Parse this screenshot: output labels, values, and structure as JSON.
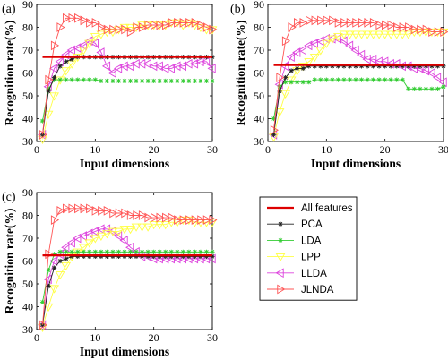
{
  "chart_data": [
    {
      "type": "line",
      "panel_label": "(a)",
      "xlabel": "Input dimensions",
      "ylabel": "Recognition rate(%)",
      "xlim": [
        0,
        30
      ],
      "ylim": [
        30,
        90
      ],
      "xticks": [
        "0",
        "10",
        "20",
        "30"
      ],
      "yticks": [
        "30",
        "40",
        "50",
        "60",
        "70",
        "80",
        "90"
      ],
      "x": [
        1,
        2,
        3,
        4,
        5,
        6,
        7,
        8,
        9,
        10,
        11,
        12,
        13,
        14,
        15,
        16,
        17,
        18,
        19,
        20,
        21,
        22,
        23,
        24,
        25,
        26,
        27,
        28,
        29,
        30
      ],
      "series": [
        {
          "name": "All features",
          "values": [
            67,
            67,
            67,
            67,
            67,
            67,
            67,
            67,
            67,
            67,
            67,
            67,
            67,
            67,
            67,
            67,
            67,
            67,
            67,
            67,
            67,
            67,
            67,
            67,
            67,
            67,
            67,
            67,
            67,
            67
          ]
        },
        {
          "name": "PCA",
          "values": [
            33,
            52,
            58,
            63,
            65,
            66,
            67,
            67,
            67,
            67,
            67,
            67,
            67,
            67,
            67,
            67,
            67,
            67,
            67,
            67,
            67,
            67,
            67,
            67,
            67,
            67,
            67,
            67,
            67,
            67
          ]
        },
        {
          "name": "LDA",
          "values": [
            39,
            53,
            57,
            57,
            57,
            57,
            57,
            57,
            57,
            57,
            56.5,
            56.5,
            56.5,
            56.5,
            56.5,
            56.5,
            56.5,
            56.5,
            56.5,
            56.5,
            56.5,
            56.5,
            56.5,
            56.5,
            56.5,
            56.5,
            56.5,
            56.5,
            56.5,
            56.5
          ]
        },
        {
          "name": "LPP",
          "values": [
            31,
            42,
            50,
            57,
            61,
            64,
            67,
            70,
            73,
            76,
            77,
            78,
            78,
            79,
            80,
            80,
            80,
            81,
            81,
            81,
            81,
            81,
            82,
            82,
            81,
            82,
            81,
            80,
            79,
            79
          ]
        },
        {
          "name": "LLDA",
          "values": [
            33,
            54,
            62,
            65,
            68,
            70,
            71,
            72,
            74,
            73,
            69,
            63,
            60,
            62,
            63,
            63,
            64,
            64,
            64,
            63,
            63,
            62,
            62,
            63,
            63,
            64,
            64,
            65,
            65,
            62
          ]
        },
        {
          "name": "JLNDA",
          "values": [
            33,
            57,
            72,
            80,
            84,
            84,
            84,
            83,
            82,
            82,
            80,
            79,
            79,
            79,
            79,
            78,
            80,
            80,
            81,
            81,
            81,
            81,
            82,
            82,
            82,
            82,
            82,
            81,
            80,
            79
          ]
        }
      ]
    },
    {
      "type": "line",
      "panel_label": "(b)",
      "xlabel": "Input dimensions",
      "ylabel": "Recognition rate(%)",
      "xlim": [
        0,
        30
      ],
      "ylim": [
        30,
        90
      ],
      "xticks": [
        "0",
        "10",
        "20",
        "30"
      ],
      "yticks": [
        "30",
        "40",
        "50",
        "60",
        "70",
        "80",
        "90"
      ],
      "x": [
        1,
        2,
        3,
        4,
        5,
        6,
        7,
        8,
        9,
        10,
        11,
        12,
        13,
        14,
        15,
        16,
        17,
        18,
        19,
        20,
        21,
        22,
        23,
        24,
        25,
        26,
        27,
        28,
        29,
        30
      ],
      "series": [
        {
          "name": "All features",
          "values": [
            63.5,
            63.5,
            63.5,
            63.5,
            63.5,
            63.5,
            63.5,
            63.5,
            63.5,
            63.5,
            63.5,
            63.5,
            63.5,
            63.5,
            63.5,
            63.5,
            63.5,
            63.5,
            63.5,
            63.5,
            63.5,
            63.5,
            63.5,
            63.5,
            63.5,
            63.5,
            63.5,
            63.5,
            63.5,
            63.5
          ]
        },
        {
          "name": "PCA",
          "values": [
            33,
            52,
            58,
            61,
            62,
            62,
            63,
            63,
            63,
            63,
            63,
            63,
            63,
            63,
            63,
            63,
            63,
            63,
            63,
            63,
            63,
            63,
            63,
            63,
            63,
            63,
            63,
            63,
            63,
            63
          ]
        },
        {
          "name": "LDA",
          "values": [
            40,
            54,
            56,
            56,
            56,
            56,
            56,
            57,
            57,
            57,
            57,
            57,
            57,
            57,
            57,
            57,
            57,
            57,
            57,
            57,
            57,
            57,
            57,
            53,
            53,
            53,
            53,
            53,
            53,
            54
          ]
        },
        {
          "name": "LPP",
          "values": [
            32,
            43,
            51,
            57,
            61,
            63,
            65,
            67,
            70,
            73,
            75,
            76,
            77,
            77,
            77,
            77,
            77,
            77,
            77,
            77,
            77,
            77,
            77,
            77,
            78,
            78,
            78,
            78,
            78,
            78
          ]
        },
        {
          "name": "LLDA",
          "values": [
            33,
            55,
            63,
            67,
            69,
            70,
            72,
            73,
            74,
            75,
            75,
            75,
            74,
            72,
            70,
            68,
            66,
            66,
            65,
            65,
            64,
            64,
            63,
            63,
            62,
            62,
            61,
            60,
            58,
            56
          ]
        },
        {
          "name": "JLNDA",
          "values": [
            35,
            58,
            74,
            80,
            82,
            82,
            83,
            83,
            83,
            83,
            83,
            82,
            82,
            82,
            82,
            82,
            82,
            82,
            81,
            81,
            81,
            80,
            80,
            80,
            79,
            79,
            79,
            78,
            78,
            78
          ]
        }
      ]
    },
    {
      "type": "line",
      "panel_label": "(c)",
      "xlabel": "Input dimensions",
      "ylabel": "Recognition rate(%)",
      "xlim": [
        0,
        30
      ],
      "ylim": [
        30,
        90
      ],
      "xticks": [
        "0",
        "10",
        "20",
        "30"
      ],
      "yticks": [
        "30",
        "40",
        "50",
        "60",
        "70",
        "80",
        "90"
      ],
      "x": [
        1,
        2,
        3,
        4,
        5,
        6,
        7,
        8,
        9,
        10,
        11,
        12,
        13,
        14,
        15,
        16,
        17,
        18,
        19,
        20,
        21,
        22,
        23,
        24,
        25,
        26,
        27,
        28,
        29,
        30
      ],
      "series": [
        {
          "name": "All features",
          "values": [
            62.5,
            62.5,
            62.5,
            62.5,
            62.5,
            62.5,
            62.5,
            62.5,
            62.5,
            62.5,
            62.5,
            62.5,
            62.5,
            62.5,
            62.5,
            62.5,
            62.5,
            62.5,
            62.5,
            62.5,
            62.5,
            62.5,
            62.5,
            62.5,
            62.5,
            62.5,
            62.5,
            62.5,
            62.5,
            62.5
          ]
        },
        {
          "name": "PCA",
          "values": [
            32,
            49,
            57,
            60,
            61,
            62,
            62,
            62,
            62,
            62,
            62,
            62,
            62,
            62,
            62,
            62,
            62,
            62,
            62,
            62,
            62,
            62,
            62,
            62,
            62,
            62,
            62,
            62,
            62,
            62
          ]
        },
        {
          "name": "LDA",
          "values": [
            42,
            56,
            63,
            64,
            64,
            64,
            64,
            64,
            64,
            64,
            64,
            64,
            64,
            64,
            64,
            64,
            64,
            64,
            64,
            64,
            64,
            64,
            64,
            64,
            64,
            64,
            64,
            64,
            64,
            64
          ]
        },
        {
          "name": "LPP",
          "values": [
            31,
            40,
            48,
            54,
            58,
            62,
            64,
            66,
            68,
            70,
            71,
            72,
            73,
            73,
            74,
            74,
            75,
            75,
            75,
            76,
            76,
            76,
            77,
            77,
            78,
            78,
            77,
            77,
            77,
            77
          ]
        },
        {
          "name": "LLDA",
          "values": [
            32,
            52,
            60,
            63,
            66,
            68,
            70,
            71,
            72,
            73,
            74,
            74,
            73,
            71,
            69,
            66,
            64,
            62,
            62,
            61,
            61,
            61,
            61,
            61,
            61,
            61,
            61,
            61,
            61,
            61
          ]
        },
        {
          "name": "JLNDA",
          "values": [
            32,
            63,
            78,
            82,
            83,
            83,
            83,
            83,
            83,
            82,
            82,
            82,
            81,
            81,
            81,
            80,
            80,
            80,
            79,
            79,
            79,
            79,
            79,
            78,
            78,
            78,
            78,
            78,
            78,
            78
          ]
        }
      ]
    }
  ],
  "legend": {
    "entries": [
      "All features",
      "PCA",
      "LDA",
      "LPP",
      "LLDA",
      "JLNDA"
    ]
  },
  "styles": {
    "All features": {
      "color": "#dd0000",
      "marker": "none"
    },
    "PCA": {
      "color": "#222222",
      "marker": "star"
    },
    "LDA": {
      "color": "#33cc33",
      "marker": "star"
    },
    "LPP": {
      "color": "#ffff44",
      "marker": "triangle-down"
    },
    "LLDA": {
      "color": "#dd44dd",
      "marker": "triangle-left"
    },
    "JLNDA": {
      "color": "#ff5555",
      "marker": "triangle-right"
    }
  }
}
